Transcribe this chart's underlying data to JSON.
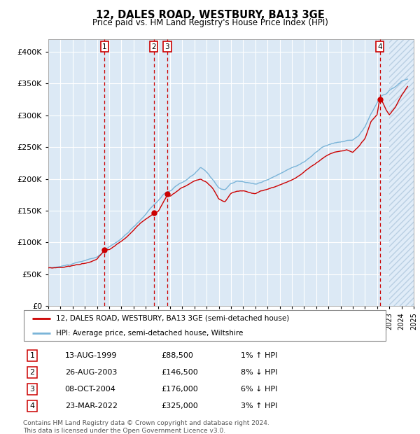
{
  "title": "12, DALES ROAD, WESTBURY, BA13 3GE",
  "subtitle": "Price paid vs. HM Land Registry's House Price Index (HPI)",
  "transactions": [
    {
      "label": "1",
      "date": "13-AUG-1999",
      "price": 88500,
      "relation": "1% ↑ HPI",
      "x_year": 1999.617
    },
    {
      "label": "2",
      "date": "26-AUG-2003",
      "price": 146500,
      "relation": "8% ↓ HPI",
      "x_year": 2003.65
    },
    {
      "label": "3",
      "date": "08-OCT-2004",
      "price": 176000,
      "relation": "6% ↓ HPI",
      "x_year": 2004.767
    },
    {
      "label": "4",
      "date": "23-MAR-2022",
      "price": 325000,
      "relation": "3% ↑ HPI",
      "x_year": 2022.225
    }
  ],
  "legend_entries": [
    "12, DALES ROAD, WESTBURY, BA13 3GE (semi-detached house)",
    "HPI: Average price, semi-detached house, Wiltshire"
  ],
  "footer": "Contains HM Land Registry data © Crown copyright and database right 2024.\nThis data is licensed under the Open Government Licence v3.0.",
  "hpi_color": "#7ab4d8",
  "price_color": "#cc0000",
  "plot_bg_color": "#dce9f5",
  "grid_color": "#ffffff",
  "vline_color": "#cc0000",
  "marker_color": "#cc0000",
  "xlim": [
    1995.0,
    2025.0
  ],
  "ylim": [
    0,
    420000
  ],
  "yticks": [
    0,
    50000,
    100000,
    150000,
    200000,
    250000,
    300000,
    350000,
    400000
  ],
  "ytick_labels": [
    "£0",
    "£50K",
    "£100K",
    "£150K",
    "£200K",
    "£250K",
    "£300K",
    "£350K",
    "£400K"
  ],
  "xticks": [
    1995,
    1996,
    1997,
    1998,
    1999,
    2000,
    2001,
    2002,
    2003,
    2004,
    2005,
    2006,
    2007,
    2008,
    2009,
    2010,
    2011,
    2012,
    2013,
    2014,
    2015,
    2016,
    2017,
    2018,
    2019,
    2020,
    2021,
    2022,
    2023,
    2024,
    2025
  ],
  "hatch_start": 2023.0,
  "hatch_end": 2025.5,
  "hpi_anchors": [
    [
      1995.0,
      60000
    ],
    [
      1996.0,
      62000
    ],
    [
      1997.0,
      66000
    ],
    [
      1998.0,
      70000
    ],
    [
      1999.0,
      76000
    ],
    [
      1999.5,
      83000
    ],
    [
      2000.0,
      91000
    ],
    [
      2000.5,
      97000
    ],
    [
      2001.0,
      104000
    ],
    [
      2001.5,
      112000
    ],
    [
      2002.0,
      122000
    ],
    [
      2002.5,
      132000
    ],
    [
      2003.0,
      142000
    ],
    [
      2003.5,
      155000
    ],
    [
      2004.0,
      164000
    ],
    [
      2004.5,
      175000
    ],
    [
      2005.0,
      180000
    ],
    [
      2005.5,
      187000
    ],
    [
      2006.0,
      192000
    ],
    [
      2006.5,
      198000
    ],
    [
      2007.0,
      205000
    ],
    [
      2007.5,
      215000
    ],
    [
      2008.0,
      207000
    ],
    [
      2008.5,
      195000
    ],
    [
      2009.0,
      183000
    ],
    [
      2009.5,
      180000
    ],
    [
      2010.0,
      190000
    ],
    [
      2010.5,
      193000
    ],
    [
      2011.0,
      192000
    ],
    [
      2011.5,
      190000
    ],
    [
      2012.0,
      188000
    ],
    [
      2012.5,
      192000
    ],
    [
      2013.0,
      196000
    ],
    [
      2013.5,
      200000
    ],
    [
      2014.0,
      205000
    ],
    [
      2014.5,
      210000
    ],
    [
      2015.0,
      215000
    ],
    [
      2015.5,
      220000
    ],
    [
      2016.0,
      225000
    ],
    [
      2016.5,
      232000
    ],
    [
      2017.0,
      240000
    ],
    [
      2017.5,
      248000
    ],
    [
      2018.0,
      252000
    ],
    [
      2018.5,
      255000
    ],
    [
      2019.0,
      255000
    ],
    [
      2019.5,
      258000
    ],
    [
      2020.0,
      258000
    ],
    [
      2020.5,
      265000
    ],
    [
      2021.0,
      278000
    ],
    [
      2021.5,
      298000
    ],
    [
      2022.0,
      315000
    ],
    [
      2022.25,
      325000
    ],
    [
      2022.5,
      328000
    ],
    [
      2022.75,
      330000
    ],
    [
      2023.0,
      335000
    ],
    [
      2023.5,
      340000
    ],
    [
      2024.0,
      348000
    ],
    [
      2024.5,
      352000
    ]
  ],
  "price_anchors": [
    [
      1995.0,
      60000
    ],
    [
      1996.0,
      61000
    ],
    [
      1997.0,
      64000
    ],
    [
      1998.0,
      68000
    ],
    [
      1999.0,
      74000
    ],
    [
      1999.617,
      88500
    ],
    [
      2000.0,
      89000
    ],
    [
      2000.5,
      95000
    ],
    [
      2001.0,
      102000
    ],
    [
      2001.5,
      110000
    ],
    [
      2002.0,
      119000
    ],
    [
      2002.5,
      129000
    ],
    [
      2003.0,
      138000
    ],
    [
      2003.65,
      146500
    ],
    [
      2004.0,
      150000
    ],
    [
      2004.767,
      176000
    ],
    [
      2005.0,
      174000
    ],
    [
      2005.5,
      181000
    ],
    [
      2006.0,
      188000
    ],
    [
      2006.5,
      192000
    ],
    [
      2007.0,
      198000
    ],
    [
      2007.5,
      200000
    ],
    [
      2008.0,
      195000
    ],
    [
      2008.5,
      185000
    ],
    [
      2009.0,
      168000
    ],
    [
      2009.5,
      163000
    ],
    [
      2010.0,
      176000
    ],
    [
      2010.5,
      179000
    ],
    [
      2011.0,
      180000
    ],
    [
      2011.5,
      178000
    ],
    [
      2012.0,
      176000
    ],
    [
      2012.5,
      180000
    ],
    [
      2013.0,
      183000
    ],
    [
      2013.5,
      186000
    ],
    [
      2014.0,
      190000
    ],
    [
      2014.5,
      194000
    ],
    [
      2015.0,
      198000
    ],
    [
      2015.5,
      204000
    ],
    [
      2016.0,
      210000
    ],
    [
      2016.5,
      218000
    ],
    [
      2017.0,
      225000
    ],
    [
      2017.5,
      232000
    ],
    [
      2018.0,
      238000
    ],
    [
      2018.5,
      242000
    ],
    [
      2019.0,
      244000
    ],
    [
      2019.5,
      246000
    ],
    [
      2020.0,
      242000
    ],
    [
      2020.5,
      250000
    ],
    [
      2021.0,
      262000
    ],
    [
      2021.5,
      288000
    ],
    [
      2022.0,
      298000
    ],
    [
      2022.225,
      325000
    ],
    [
      2022.5,
      315000
    ],
    [
      2022.75,
      305000
    ],
    [
      2023.0,
      298000
    ],
    [
      2023.5,
      310000
    ],
    [
      2024.0,
      328000
    ],
    [
      2024.5,
      342000
    ]
  ],
  "noise_seed_hpi": 10,
  "noise_seed_price": 20,
  "noise_scale_hpi": 1500,
  "noise_scale_price": 1200
}
